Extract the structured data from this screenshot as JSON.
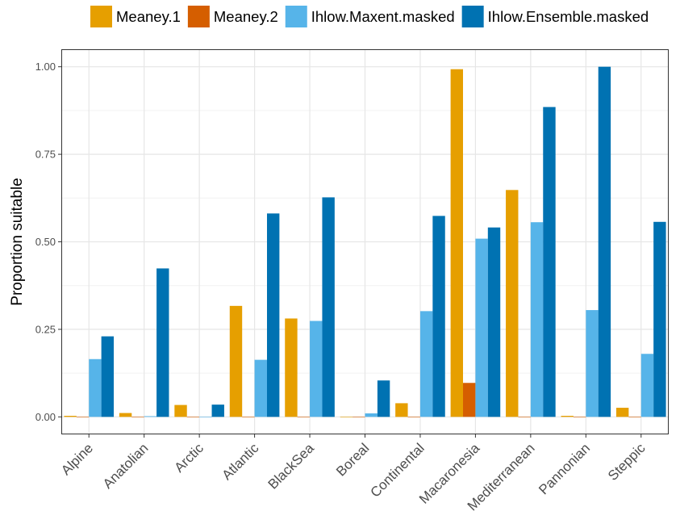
{
  "chart_data": {
    "type": "bar",
    "title": "",
    "xlabel": "",
    "ylabel": "Proportion suitable",
    "ylim": [
      -0.05,
      1.05
    ],
    "yticks": [
      0.0,
      0.25,
      0.5,
      0.75,
      1.0
    ],
    "ytick_labels": [
      "0.00",
      "0.25",
      "0.50",
      "0.75",
      "1.00"
    ],
    "grid": true,
    "legend_position": "top",
    "categories": [
      "Alpine",
      "Anatolian",
      "Arctic",
      "Atlantic",
      "BlackSea",
      "Boreal",
      "Continental",
      "Macaronesia",
      "Mediterranean",
      "Pannonian",
      "Steppic"
    ],
    "series": [
      {
        "name": "Meaney.1",
        "color": "#E69F00",
        "values": [
          0.003,
          0.011,
          0.034,
          0.317,
          0.281,
          0.0,
          0.039,
          0.993,
          0.648,
          0.003,
          0.026
        ]
      },
      {
        "name": "Meaney.2",
        "color": "#D55E00",
        "values": [
          0.0,
          0.0,
          0.0,
          0.0,
          0.0,
          0.0,
          0.0,
          0.097,
          0.0,
          0.0,
          0.0
        ]
      },
      {
        "name": "Ihlow.Maxent.masked",
        "color": "#56B4E9",
        "values": [
          0.165,
          0.002,
          0.0,
          0.163,
          0.274,
          0.01,
          0.302,
          0.509,
          0.556,
          0.305,
          0.18
        ]
      },
      {
        "name": "Ihlow.Ensemble.masked",
        "color": "#0072B2",
        "values": [
          0.23,
          0.424,
          0.035,
          0.581,
          0.627,
          0.104,
          0.574,
          0.541,
          0.885,
          1.0,
          0.557
        ]
      }
    ]
  }
}
